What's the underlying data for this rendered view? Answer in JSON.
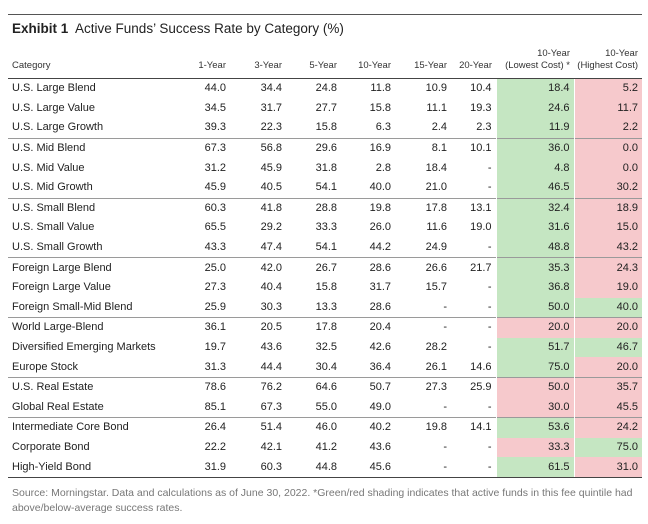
{
  "title": {
    "exhibit": "Exhibit 1",
    "text": "Active Funds’ Success Rate by Category (%)"
  },
  "headers": [
    "Category",
    "1-Year",
    "3-Year",
    "5-Year",
    "10-Year",
    "15-Year",
    "20-Year",
    "10-Year (Lowest Cost) *",
    "10-Year (Highest Cost)"
  ],
  "colors": {
    "green": "#c5e6c2",
    "red": "#f6c9cc"
  },
  "rows": [
    {
      "cat": "U.S. Large Blend",
      "v": [
        "44.0",
        "34.4",
        "24.8",
        "11.8",
        "10.9",
        "10.4"
      ],
      "low": "18.4",
      "lowc": "green",
      "high": "5.2",
      "highc": "red",
      "grp": 1
    },
    {
      "cat": "U.S. Large Value",
      "v": [
        "34.5",
        "31.7",
        "27.7",
        "15.8",
        "11.1",
        "19.3"
      ],
      "low": "24.6",
      "lowc": "green",
      "high": "11.7",
      "highc": "red",
      "grp": 0
    },
    {
      "cat": "U.S. Large Growth",
      "v": [
        "39.3",
        "22.3",
        "15.8",
        "6.3",
        "2.4",
        "2.3"
      ],
      "low": "11.9",
      "lowc": "green",
      "high": "2.2",
      "highc": "red",
      "grp": 0
    },
    {
      "cat": "U.S. Mid Blend",
      "v": [
        "67.3",
        "56.8",
        "29.6",
        "16.9",
        "8.1",
        "10.1"
      ],
      "low": "36.0",
      "lowc": "green",
      "high": "0.0",
      "highc": "red",
      "grp": 1
    },
    {
      "cat": "U.S. Mid Value",
      "v": [
        "31.2",
        "45.9",
        "31.8",
        "2.8",
        "18.4",
        "-"
      ],
      "low": "4.8",
      "lowc": "green",
      "high": "0.0",
      "highc": "red",
      "grp": 0
    },
    {
      "cat": "U.S. Mid Growth",
      "v": [
        "45.9",
        "40.5",
        "54.1",
        "40.0",
        "21.0",
        "-"
      ],
      "low": "46.5",
      "lowc": "green",
      "high": "30.2",
      "highc": "red",
      "grp": 0
    },
    {
      "cat": "U.S. Small Blend",
      "v": [
        "60.3",
        "41.8",
        "28.8",
        "19.8",
        "17.8",
        "13.1"
      ],
      "low": "32.4",
      "lowc": "green",
      "high": "18.9",
      "highc": "red",
      "grp": 1
    },
    {
      "cat": "U.S. Small Value",
      "v": [
        "65.5",
        "29.2",
        "33.3",
        "26.0",
        "11.6",
        "19.0"
      ],
      "low": "31.6",
      "lowc": "green",
      "high": "15.0",
      "highc": "red",
      "grp": 0
    },
    {
      "cat": "U.S. Small Growth",
      "v": [
        "43.3",
        "47.4",
        "54.1",
        "44.2",
        "24.9",
        "-"
      ],
      "low": "48.8",
      "lowc": "green",
      "high": "43.2",
      "highc": "red",
      "grp": 0
    },
    {
      "cat": "Foreign Large Blend",
      "v": [
        "25.0",
        "42.0",
        "26.7",
        "28.6",
        "26.6",
        "21.7"
      ],
      "low": "35.3",
      "lowc": "green",
      "high": "24.3",
      "highc": "red",
      "grp": 1
    },
    {
      "cat": "Foreign Large Value",
      "v": [
        "27.3",
        "40.4",
        "15.8",
        "31.7",
        "15.7",
        "-"
      ],
      "low": "36.8",
      "lowc": "green",
      "high": "19.0",
      "highc": "red",
      "grp": 0
    },
    {
      "cat": "Foreign Small-Mid Blend",
      "v": [
        "25.9",
        "30.3",
        "13.3",
        "28.6",
        "-",
        "-"
      ],
      "low": "50.0",
      "lowc": "green",
      "high": "40.0",
      "highc": "green",
      "grp": 0
    },
    {
      "cat": "World Large-Blend",
      "v": [
        "36.1",
        "20.5",
        "17.8",
        "20.4",
        "-",
        "-"
      ],
      "low": "20.0",
      "lowc": "red",
      "high": "20.0",
      "highc": "red",
      "grp": 1
    },
    {
      "cat": "Diversified Emerging Markets",
      "v": [
        "19.7",
        "43.6",
        "32.5",
        "42.6",
        "28.2",
        "-"
      ],
      "low": "51.7",
      "lowc": "green",
      "high": "46.7",
      "highc": "green",
      "grp": 0
    },
    {
      "cat": "Europe Stock",
      "v": [
        "31.3",
        "44.4",
        "30.4",
        "36.4",
        "26.1",
        "14.6"
      ],
      "low": "75.0",
      "lowc": "green",
      "high": "20.0",
      "highc": "red",
      "grp": 0
    },
    {
      "cat": "U.S. Real Estate",
      "v": [
        "78.6",
        "76.2",
        "64.6",
        "50.7",
        "27.3",
        "25.9"
      ],
      "low": "50.0",
      "lowc": "red",
      "high": "35.7",
      "highc": "red",
      "grp": 1
    },
    {
      "cat": "Global Real Estate",
      "v": [
        "85.1",
        "67.3",
        "55.0",
        "49.0",
        "-",
        "-"
      ],
      "low": "30.0",
      "lowc": "red",
      "high": "45.5",
      "highc": "red",
      "grp": 0
    },
    {
      "cat": "Intermediate Core Bond",
      "v": [
        "26.4",
        "51.4",
        "46.0",
        "40.2",
        "19.8",
        "14.1"
      ],
      "low": "53.6",
      "lowc": "green",
      "high": "24.2",
      "highc": "red",
      "grp": 1
    },
    {
      "cat": "Corporate Bond",
      "v": [
        "22.2",
        "42.1",
        "41.2",
        "43.6",
        "-",
        "-"
      ],
      "low": "33.3",
      "lowc": "red",
      "high": "75.0",
      "highc": "green",
      "grp": 0
    },
    {
      "cat": "High-Yield Bond",
      "v": [
        "31.9",
        "60.3",
        "44.8",
        "45.6",
        "-",
        "-"
      ],
      "low": "61.5",
      "lowc": "green",
      "high": "31.0",
      "highc": "red",
      "grp": 0
    }
  ],
  "footnote": "Source: Morningstar. Data and calculations as of June 30, 2022. *Green/red shading indicates that active funds in this fee quintile had above/below-average success rates."
}
